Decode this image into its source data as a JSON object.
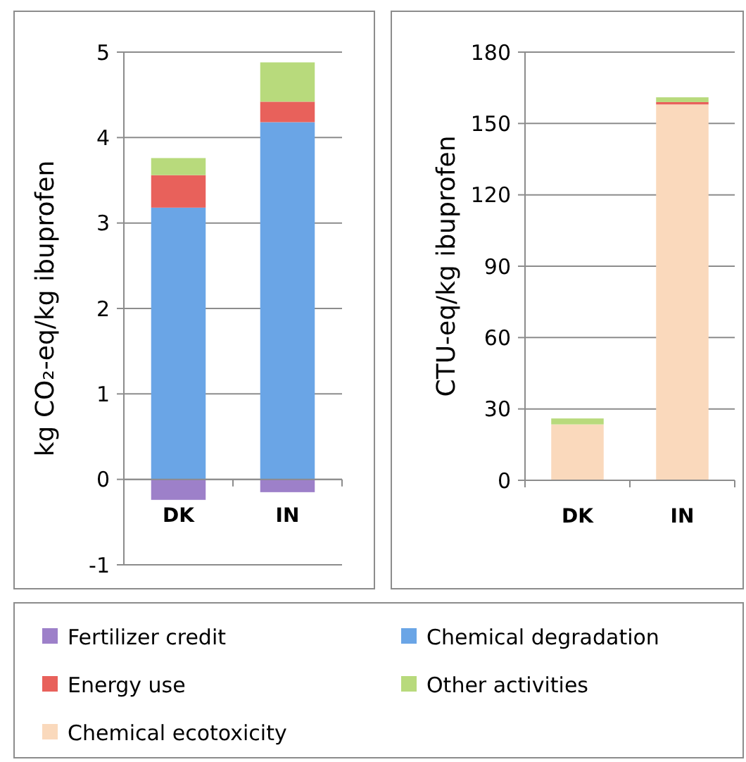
{
  "chart_data": [
    {
      "type": "bar",
      "stacked": true,
      "ylabel": "kg CO₂-eq/kg ibuprofen",
      "categories": [
        "DK",
        "IN"
      ],
      "ylim": [
        -1,
        5
      ],
      "yticks": [
        -1,
        0,
        1,
        2,
        3,
        4,
        5
      ],
      "grid": "y",
      "legend": "bottom",
      "series": [
        {
          "name": "Fertilizer credit",
          "color": "#9d80c9",
          "values": [
            -0.24,
            -0.15
          ]
        },
        {
          "name": "Chemical degradation",
          "color": "#6aa5e6",
          "values": [
            3.18,
            4.18
          ]
        },
        {
          "name": "Energy use",
          "color": "#e8615b",
          "values": [
            0.38,
            0.24
          ]
        },
        {
          "name": "Other activities",
          "color": "#b8da7c",
          "values": [
            0.2,
            0.46
          ]
        }
      ]
    },
    {
      "type": "bar",
      "stacked": true,
      "ylabel": "CTU-eq/kg ibuprofen",
      "categories": [
        "DK",
        "IN"
      ],
      "ylim": [
        0,
        180
      ],
      "yticks": [
        0,
        30,
        60,
        90,
        120,
        150,
        180
      ],
      "grid": "y",
      "legend": "bottom",
      "series": [
        {
          "name": "Chemical ecotoxicity",
          "color": "#fad9bc",
          "values": [
            23.5,
            158
          ]
        },
        {
          "name": "Energy use",
          "color": "#e8615b",
          "values": [
            0,
            1
          ]
        },
        {
          "name": "Other activities",
          "color": "#b8da7c",
          "values": [
            2.5,
            2
          ]
        }
      ]
    }
  ]
}
